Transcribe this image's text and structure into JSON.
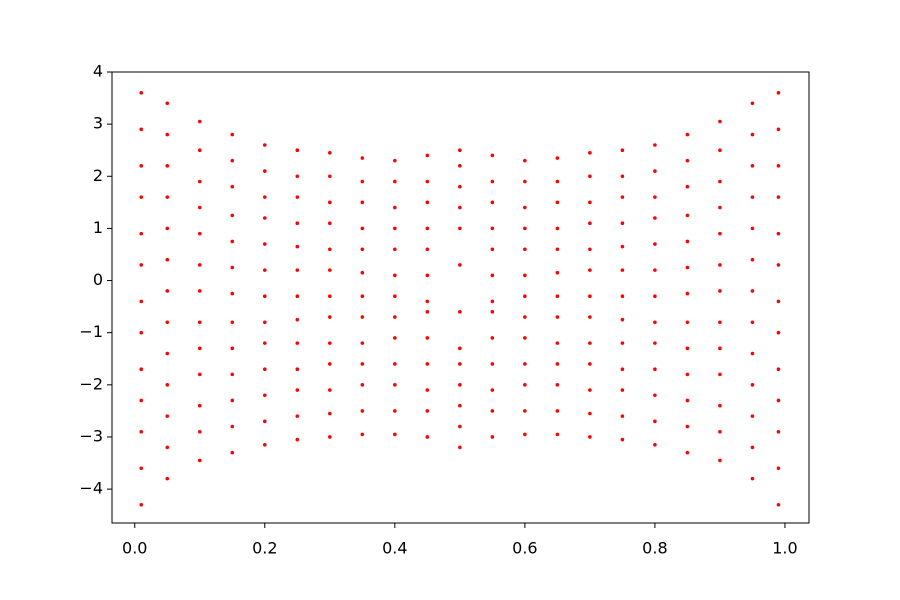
{
  "chart_data": {
    "type": "scatter",
    "color": "#ff0000",
    "xlim": [
      -0.035,
      1.037
    ],
    "ylim": [
      -4.65,
      4.0
    ],
    "xticks": [
      {
        "value": 0,
        "label": "0.0"
      },
      {
        "value": 0.2,
        "label": "0.2"
      },
      {
        "value": 0.4,
        "label": "0.4"
      },
      {
        "value": 0.6,
        "label": "0.6"
      },
      {
        "value": 0.8,
        "label": "0.8"
      },
      {
        "value": 1,
        "label": "1.0"
      }
    ],
    "yticks": [
      {
        "value": -4,
        "label": "−4"
      },
      {
        "value": -3,
        "label": "−3"
      },
      {
        "value": -2,
        "label": "−2"
      },
      {
        "value": -1,
        "label": "−1"
      },
      0,
      1,
      2,
      3,
      4
    ],
    "grid": false,
    "x": [
      0.01,
      0.01,
      0.01,
      0.01,
      0.01,
      0.01,
      0.01,
      0.01,
      0.01,
      0.01,
      0.01,
      0.01,
      0.01,
      0.05,
      0.05,
      0.05,
      0.05,
      0.05,
      0.05,
      0.05,
      0.05,
      0.05,
      0.05,
      0.05,
      0.05,
      0.05,
      0.1,
      0.1,
      0.1,
      0.1,
      0.1,
      0.1,
      0.1,
      0.1,
      0.1,
      0.1,
      0.1,
      0.1,
      0.1,
      0.15,
      0.15,
      0.15,
      0.15,
      0.15,
      0.15,
      0.15,
      0.15,
      0.15,
      0.15,
      0.15,
      0.15,
      0.15,
      0.2,
      0.2,
      0.2,
      0.2,
      0.2,
      0.2,
      0.2,
      0.2,
      0.2,
      0.2,
      0.2,
      0.2,
      0.2,
      0.25,
      0.25,
      0.25,
      0.25,
      0.25,
      0.25,
      0.25,
      0.25,
      0.25,
      0.25,
      0.25,
      0.25,
      0.25,
      0.3,
      0.3,
      0.3,
      0.3,
      0.3,
      0.3,
      0.3,
      0.3,
      0.3,
      0.3,
      0.3,
      0.3,
      0.3,
      0.35,
      0.35,
      0.35,
      0.35,
      0.35,
      0.35,
      0.35,
      0.35,
      0.35,
      0.35,
      0.35,
      0.35,
      0.35,
      0.4,
      0.4,
      0.4,
      0.4,
      0.4,
      0.4,
      0.4,
      0.4,
      0.4,
      0.4,
      0.4,
      0.4,
      0.4,
      0.45,
      0.45,
      0.45,
      0.45,
      0.45,
      0.45,
      0.45,
      0.45,
      0.45,
      0.45,
      0.45,
      0.45,
      0.45,
      0.5,
      0.5,
      0.5,
      0.5,
      0.5,
      0.5,
      0.5,
      0.5,
      0.5,
      0.5,
      0.5,
      0.5,
      0.5,
      0.55,
      0.55,
      0.55,
      0.55,
      0.55,
      0.55,
      0.55,
      0.55,
      0.55,
      0.55,
      0.55,
      0.55,
      0.55,
      0.6,
      0.6,
      0.6,
      0.6,
      0.6,
      0.6,
      0.6,
      0.6,
      0.6,
      0.6,
      0.6,
      0.6,
      0.6,
      0.65,
      0.65,
      0.65,
      0.65,
      0.65,
      0.65,
      0.65,
      0.65,
      0.65,
      0.65,
      0.65,
      0.65,
      0.65,
      0.7,
      0.7,
      0.7,
      0.7,
      0.7,
      0.7,
      0.7,
      0.7,
      0.7,
      0.7,
      0.7,
      0.7,
      0.7,
      0.75,
      0.75,
      0.75,
      0.75,
      0.75,
      0.75,
      0.75,
      0.75,
      0.75,
      0.75,
      0.75,
      0.75,
      0.75,
      0.8,
      0.8,
      0.8,
      0.8,
      0.8,
      0.8,
      0.8,
      0.8,
      0.8,
      0.8,
      0.8,
      0.8,
      0.8,
      0.85,
      0.85,
      0.85,
      0.85,
      0.85,
      0.85,
      0.85,
      0.85,
      0.85,
      0.85,
      0.85,
      0.85,
      0.85,
      0.9,
      0.9,
      0.9,
      0.9,
      0.9,
      0.9,
      0.9,
      0.9,
      0.9,
      0.9,
      0.9,
      0.9,
      0.9,
      0.95,
      0.95,
      0.95,
      0.95,
      0.95,
      0.95,
      0.95,
      0.95,
      0.95,
      0.95,
      0.95,
      0.95,
      0.95,
      0.99,
      0.99,
      0.99,
      0.99,
      0.99,
      0.99,
      0.99,
      0.99,
      0.99,
      0.99,
      0.99,
      0.99,
      0.99
    ],
    "values": [
      -4.3,
      -3.6,
      -2.9,
      -2.3,
      -1.7,
      -1.0,
      -0.4,
      0.3,
      0.9,
      1.6,
      2.2,
      2.9,
      3.6,
      -3.8,
      -3.2,
      -2.6,
      -2.0,
      -1.4,
      -0.8,
      -0.2,
      0.4,
      1.0,
      1.6,
      2.2,
      2.8,
      3.4,
      -3.45,
      -2.9,
      -2.4,
      -1.8,
      -1.3,
      -0.8,
      -0.2,
      0.3,
      0.9,
      1.4,
      1.9,
      2.5,
      3.05,
      -3.3,
      -2.8,
      -2.3,
      -1.8,
      -1.3,
      -0.8,
      -0.25,
      0.25,
      0.75,
      1.25,
      1.8,
      2.3,
      2.8,
      -3.15,
      -2.7,
      -2.2,
      -1.7,
      -1.2,
      -0.8,
      -0.3,
      0.2,
      0.7,
      1.2,
      1.6,
      2.1,
      2.6,
      -3.05,
      -2.6,
      -2.1,
      -1.7,
      -1.2,
      -0.75,
      -0.3,
      0.2,
      0.65,
      1.1,
      1.6,
      2.0,
      2.5,
      -3.0,
      -2.55,
      -2.1,
      -1.6,
      -1.2,
      -0.7,
      -0.3,
      0.2,
      0.6,
      1.1,
      1.5,
      2.0,
      2.45,
      -2.95,
      -2.5,
      -2.0,
      -1.6,
      -1.2,
      -0.7,
      -0.3,
      0.15,
      0.6,
      1.0,
      1.5,
      1.9,
      2.35,
      -2.95,
      -2.5,
      -2.0,
      -1.6,
      -1.1,
      -0.7,
      -0.3,
      0.1,
      0.6,
      1.0,
      1.4,
      1.9,
      2.3,
      -3.0,
      -2.5,
      -2.1,
      -1.6,
      -1.1,
      -0.6,
      -0.4,
      0.1,
      0.6,
      1.0,
      1.5,
      1.9,
      2.4,
      -3.2,
      -2.8,
      -2.4,
      -2.0,
      -1.6,
      -1.3,
      -0.6,
      0.3,
      1.0,
      1.4,
      1.8,
      2.2,
      2.5,
      -3.0,
      -2.5,
      -2.1,
      -1.6,
      -1.1,
      -0.6,
      -0.4,
      0.1,
      0.6,
      1.0,
      1.5,
      1.9,
      2.4,
      -2.95,
      -2.5,
      -2.0,
      -1.6,
      -1.1,
      -0.7,
      -0.3,
      0.1,
      0.6,
      1.0,
      1.4,
      1.9,
      2.3,
      -2.95,
      -2.5,
      -2.0,
      -1.6,
      -1.2,
      -0.7,
      -0.3,
      0.15,
      0.6,
      1.0,
      1.5,
      1.9,
      2.35,
      -3.0,
      -2.55,
      -2.1,
      -1.6,
      -1.2,
      -0.7,
      -0.3,
      0.2,
      0.6,
      1.1,
      1.5,
      2.0,
      2.45,
      -3.05,
      -2.6,
      -2.1,
      -1.7,
      -1.2,
      -0.75,
      -0.3,
      0.2,
      0.65,
      1.1,
      1.6,
      2.0,
      2.5,
      -3.15,
      -2.7,
      -2.2,
      -1.7,
      -1.2,
      -0.8,
      -0.3,
      0.2,
      0.7,
      1.2,
      1.6,
      2.1,
      2.6,
      -3.3,
      -2.8,
      -2.3,
      -1.8,
      -1.3,
      -0.8,
      -0.25,
      0.25,
      0.75,
      1.25,
      1.8,
      2.3,
      2.8,
      -3.45,
      -2.9,
      -2.4,
      -1.8,
      -1.3,
      -0.8,
      -0.2,
      0.3,
      0.9,
      1.4,
      1.9,
      2.5,
      3.05,
      -3.8,
      -3.2,
      -2.6,
      -2.0,
      -1.4,
      -0.8,
      -0.2,
      0.4,
      1.0,
      1.6,
      2.2,
      2.8,
      3.4,
      -4.3,
      -3.6,
      -2.9,
      -2.3,
      -1.7,
      -1.0,
      -0.4,
      0.3,
      0.9,
      1.6,
      2.2,
      2.9,
      3.6
    ]
  }
}
